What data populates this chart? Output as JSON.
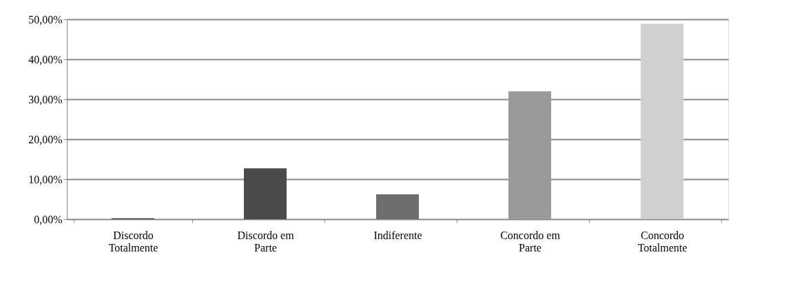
{
  "chart_data": {
    "type": "bar",
    "categories": [
      "Discordo Totalmente",
      "Discordo em Parte",
      "Indiferente",
      "Concordo em Parte",
      "Concordo Totalmente"
    ],
    "values": [
      0.2,
      12.7,
      6.2,
      32.0,
      48.9
    ],
    "colors": [
      "#3a3a3a",
      "#4a4a4a",
      "#6e6e6e",
      "#9a9a9a",
      "#d0d0d0"
    ],
    "ylim": [
      0,
      50
    ],
    "yticks": [
      {
        "value": 0,
        "label": "0,00%"
      },
      {
        "value": 10,
        "label": "10,00%"
      },
      {
        "value": 20,
        "label": "20,00%"
      },
      {
        "value": 30,
        "label": "30,00%"
      },
      {
        "value": 40,
        "label": "40,00%"
      },
      {
        "value": 50,
        "label": "50,00%"
      }
    ],
    "grid": "y"
  }
}
